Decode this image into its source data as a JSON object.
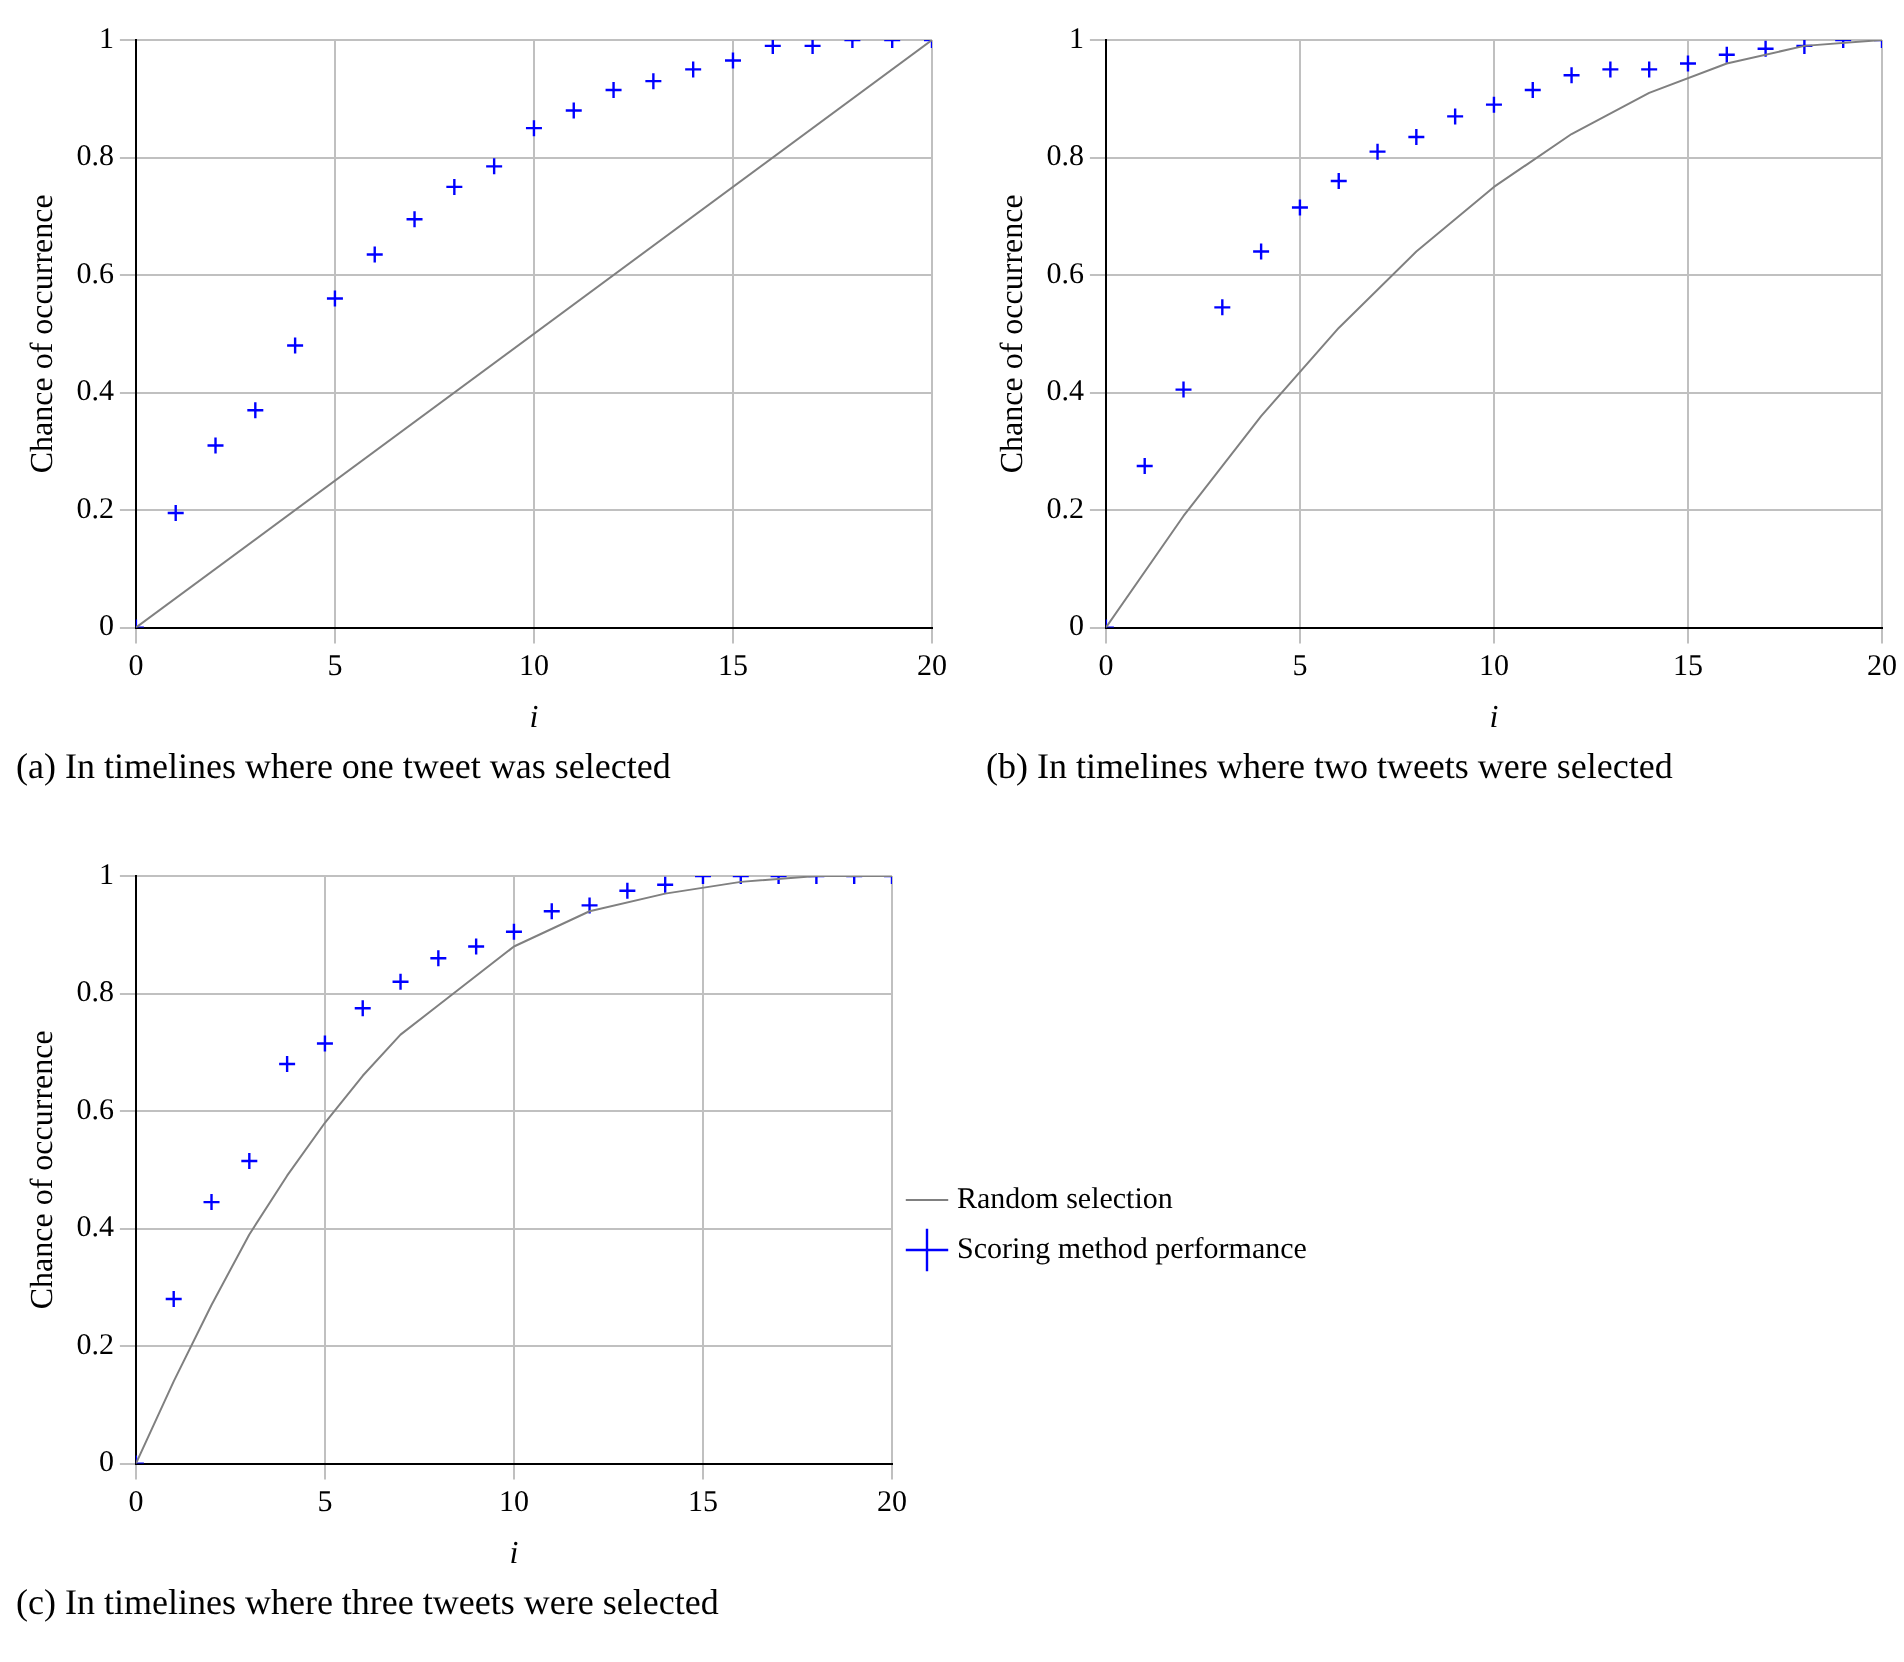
{
  "chart_data": [
    {
      "type": "scatter",
      "annotations": [
        "(a) In timelines where one tweet was selected"
      ],
      "xlabel": "i",
      "ylabel": "Chance of occurrence",
      "xlim": [
        0,
        20
      ],
      "ylim": [
        0,
        1
      ],
      "xticks": [
        0,
        5,
        10,
        15,
        20
      ],
      "yticks": [
        0,
        0.2,
        0.4,
        0.6,
        0.8,
        1
      ],
      "grid": true,
      "legend": false,
      "series": [
        {
          "type": "scatter",
          "marker": "cross",
          "color": "#0000ff",
          "x": [
            0,
            1,
            2,
            3,
            4,
            5,
            6,
            7,
            8,
            9,
            10,
            11,
            12,
            13,
            14,
            15,
            16,
            17,
            18,
            19,
            20
          ],
          "values": [
            0,
            0.195,
            0.31,
            0.37,
            0.48,
            0.56,
            0.635,
            0.695,
            0.75,
            0.785,
            0.85,
            0.88,
            0.915,
            0.93,
            0.95,
            0.965,
            0.99,
            0.99,
            1,
            1,
            1
          ]
        },
        {
          "type": "line",
          "marker": "none",
          "color": "#808080",
          "x": [
            0,
            20
          ],
          "values": [
            0,
            1
          ]
        }
      ]
    },
    {
      "type": "scatter",
      "annotations": [
        "(b) In timelines where two tweets were selected"
      ],
      "xlabel": "i",
      "ylabel": "Chance of occurrence",
      "xlim": [
        0,
        20
      ],
      "ylim": [
        0,
        1
      ],
      "xticks": [
        0,
        5,
        10,
        15,
        20
      ],
      "yticks": [
        0,
        0.2,
        0.4,
        0.6,
        0.8,
        1
      ],
      "grid": true,
      "legend": false,
      "series": [
        {
          "type": "scatter",
          "marker": "cross",
          "color": "#0000ff",
          "x": [
            0,
            1,
            2,
            3,
            4,
            5,
            6,
            7,
            8,
            9,
            10,
            11,
            12,
            13,
            14,
            15,
            16,
            17,
            18,
            19,
            20
          ],
          "values": [
            0,
            0.275,
            0.405,
            0.545,
            0.64,
            0.715,
            0.76,
            0.81,
            0.835,
            0.87,
            0.89,
            0.915,
            0.94,
            0.95,
            0.95,
            0.96,
            0.975,
            0.985,
            0.99,
            1,
            1
          ]
        },
        {
          "type": "line",
          "marker": "none",
          "color": "#808080",
          "x": [
            0,
            2,
            4,
            6,
            8,
            10,
            12,
            14,
            16,
            18,
            20
          ],
          "values": [
            0,
            0.19,
            0.36,
            0.51,
            0.64,
            0.75,
            0.84,
            0.91,
            0.96,
            0.99,
            1
          ]
        }
      ]
    },
    {
      "type": "scatter",
      "annotations": [
        "(c) In timelines where three tweets were selected"
      ],
      "xlabel": "i",
      "ylabel": "Chance of occurrence",
      "xlim": [
        0,
        20
      ],
      "ylim": [
        0,
        1
      ],
      "xticks": [
        0,
        5,
        10,
        15,
        20
      ],
      "yticks": [
        0,
        0.2,
        0.4,
        0.6,
        0.8,
        1
      ],
      "grid": true,
      "legend": "right",
      "series": [
        {
          "name": "Scoring method performance",
          "type": "scatter",
          "marker": "cross",
          "color": "#0000ff",
          "x": [
            0,
            1,
            2,
            3,
            4,
            5,
            6,
            7,
            8,
            9,
            10,
            11,
            12,
            13,
            14,
            15,
            16,
            17,
            18,
            19,
            20
          ],
          "values": [
            0,
            0.28,
            0.445,
            0.515,
            0.68,
            0.715,
            0.775,
            0.82,
            0.86,
            0.88,
            0.905,
            0.94,
            0.95,
            0.975,
            0.985,
            1,
            1,
            1,
            1,
            1,
            1
          ]
        },
        {
          "name": "Random selection",
          "type": "line",
          "marker": "none",
          "color": "#808080",
          "x": [
            0,
            1,
            2,
            3,
            4,
            5,
            6,
            7,
            8,
            10,
            12,
            14,
            16,
            18,
            20
          ],
          "values": [
            0,
            0.14,
            0.27,
            0.39,
            0.49,
            0.58,
            0.66,
            0.73,
            0.78,
            0.88,
            0.94,
            0.97,
            0.99,
            1,
            1
          ]
        }
      ]
    }
  ]
}
